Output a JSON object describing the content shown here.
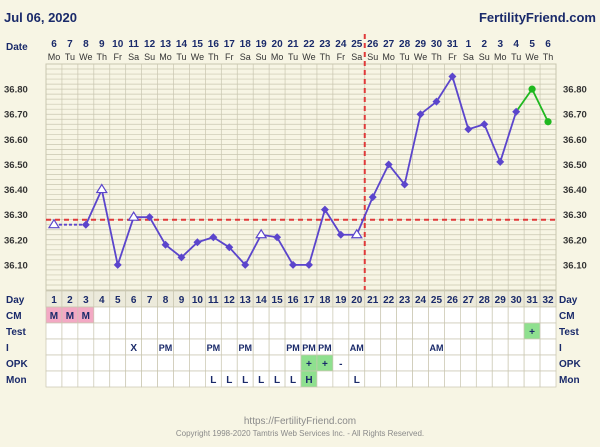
{
  "header": {
    "date": "Jul 06, 2020",
    "brand": "FertilityFriend.com",
    "date_row_label": "Date",
    "day_row_label": "Day"
  },
  "colors": {
    "background": "#f7f5e4",
    "grid": "#c9c6b0",
    "line": "#5b45cc",
    "projection": "#1fb81f",
    "coverline": "#e03a3a",
    "menstruation_cell": "#f3a9c4",
    "fertile_cell": "#8fe08f",
    "grid_cell": "#ffffff"
  },
  "chart_data": {
    "type": "line",
    "title": "",
    "xlabel": "Day",
    "ylabel": "",
    "dates": [
      "6",
      "7",
      "8",
      "9",
      "10",
      "11",
      "12",
      "13",
      "14",
      "15",
      "16",
      "17",
      "18",
      "19",
      "20",
      "21",
      "22",
      "23",
      "24",
      "25",
      "26",
      "27",
      "28",
      "29",
      "30",
      "31",
      "1",
      "2",
      "3",
      "4",
      "5",
      "6"
    ],
    "weekdays": [
      "Mo",
      "Tu",
      "We",
      "Th",
      "Fr",
      "Sa",
      "Su",
      "Mo",
      "Tu",
      "We",
      "Th",
      "Fr",
      "Sa",
      "Su",
      "Mo",
      "Tu",
      "We",
      "Th",
      "Fr",
      "Sa",
      "Su",
      "Mo",
      "Tu",
      "We",
      "Th",
      "Fr",
      "Sa",
      "Su",
      "Mo",
      "Tu",
      "We",
      "Th"
    ],
    "days": [
      "1",
      "2",
      "3",
      "4",
      "5",
      "6",
      "7",
      "8",
      "9",
      "10",
      "11",
      "12",
      "13",
      "14",
      "15",
      "16",
      "17",
      "18",
      "19",
      "20",
      "21",
      "22",
      "23",
      "24",
      "25",
      "26",
      "27",
      "28",
      "29",
      "30",
      "31",
      "32"
    ],
    "ylim": [
      36.0,
      36.9
    ],
    "yticks": [
      "36.10",
      "36.20",
      "36.30",
      "36.40",
      "36.50",
      "36.60",
      "36.70",
      "36.80"
    ],
    "grid": true,
    "coverline": 36.28,
    "ovulation_day": 20,
    "series": [
      {
        "values": [
          36.26,
          null,
          36.26,
          36.4,
          36.1,
          36.29,
          36.29,
          36.18,
          36.13,
          36.19,
          36.21,
          36.17,
          36.1,
          36.22,
          36.21,
          36.1,
          36.1,
          36.32,
          36.22,
          36.22,
          36.37,
          36.5,
          36.42,
          36.7,
          36.75,
          36.85,
          36.64,
          36.66,
          36.51,
          36.71,
          null,
          null
        ],
        "open_markers": [
          1,
          4,
          6,
          14,
          20
        ]
      },
      {
        "values": [
          null,
          null,
          null,
          null,
          null,
          null,
          null,
          null,
          null,
          null,
          null,
          null,
          null,
          null,
          null,
          null,
          null,
          null,
          null,
          null,
          null,
          null,
          null,
          null,
          null,
          null,
          null,
          null,
          null,
          36.71,
          36.8,
          36.67
        ]
      }
    ]
  },
  "rows": [
    {
      "label": "CM",
      "cells": {
        "1": "M",
        "2": "M",
        "3": "M"
      }
    },
    {
      "label": "Test",
      "cells": {
        "31": "+"
      }
    },
    {
      "label": "I",
      "cells": {
        "6": "X",
        "8": "PM",
        "11": "PM",
        "13": "PM",
        "16": "PM",
        "17": "PM",
        "18": "PM",
        "20": "AM",
        "25": "AM"
      }
    },
    {
      "label": "OPK",
      "cells": {
        "17": "+",
        "18": "+",
        "19": "-"
      }
    },
    {
      "label": "Mon",
      "cells": {
        "11": "L",
        "12": "L",
        "13": "L",
        "14": "L",
        "15": "L",
        "16": "L",
        "17": "H",
        "20": "L"
      }
    }
  ],
  "footer": {
    "url": "https://FertilityFriend.com",
    "copyright": "Copyright 1998-2020 Tamtris Web Services Inc. - All Rights Reserved."
  }
}
